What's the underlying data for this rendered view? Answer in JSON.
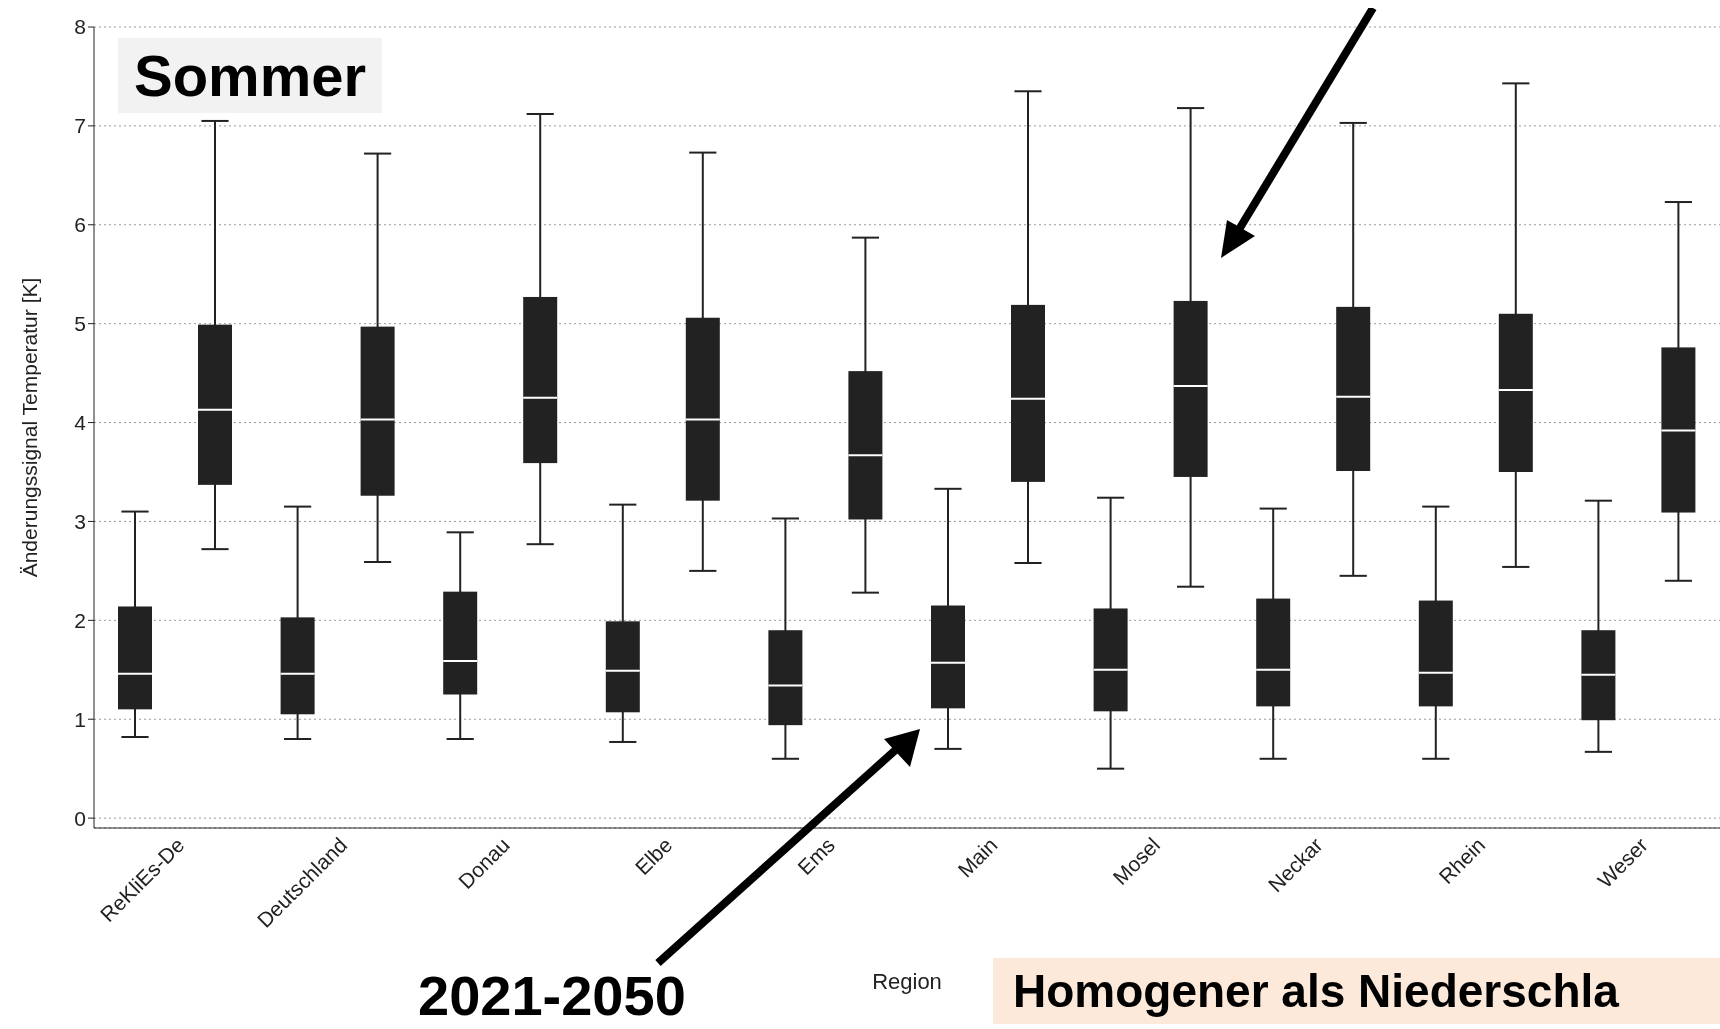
{
  "chart_data": {
    "type": "box",
    "xlabel": "Region",
    "ylabel": "Änderungssignal Temperatur [K]",
    "annotations": [
      "Sommer",
      "2021-2050",
      "Homogener als Niederschla"
    ],
    "categories": [
      "ReKliEs-De",
      "Deutschland",
      "Donau",
      "Elbe",
      "Ems",
      "Main",
      "Mosel",
      "Neckar",
      "Rhein",
      "Weser"
    ],
    "ylim": [
      -0.1,
      8
    ],
    "yticks": [
      0,
      1,
      2,
      3,
      4,
      5,
      6,
      7,
      8
    ],
    "grid": "y",
    "series": [
      {
        "color": "#222222",
        "boxes": [
          {
            "low": 0.82,
            "q1": 1.1,
            "median": 1.46,
            "q3": 2.14,
            "high": 3.1
          },
          {
            "low": 0.8,
            "q1": 1.05,
            "median": 1.46,
            "q3": 2.03,
            "high": 3.15
          },
          {
            "low": 0.8,
            "q1": 1.25,
            "median": 1.59,
            "q3": 2.29,
            "high": 2.89
          },
          {
            "low": 0.77,
            "q1": 1.07,
            "median": 1.49,
            "q3": 1.99,
            "high": 3.17
          },
          {
            "low": 0.6,
            "q1": 0.94,
            "median": 1.34,
            "q3": 1.9,
            "high": 3.03
          },
          {
            "low": 0.7,
            "q1": 1.11,
            "median": 1.57,
            "q3": 2.15,
            "high": 3.33
          },
          {
            "low": 0.5,
            "q1": 1.08,
            "median": 1.5,
            "q3": 2.12,
            "high": 3.24
          },
          {
            "low": 0.6,
            "q1": 1.13,
            "median": 1.5,
            "q3": 2.22,
            "high": 3.13
          },
          {
            "low": 0.6,
            "q1": 1.13,
            "median": 1.47,
            "q3": 2.2,
            "high": 3.15
          },
          {
            "low": 0.67,
            "q1": 0.99,
            "median": 1.45,
            "q3": 1.9,
            "high": 3.21
          }
        ]
      },
      {
        "color": "#222222",
        "boxes": [
          {
            "low": 2.72,
            "q1": 3.37,
            "median": 4.13,
            "q3": 4.99,
            "high": 7.05
          },
          {
            "low": 2.59,
            "q1": 3.26,
            "median": 4.03,
            "q3": 4.97,
            "high": 6.72
          },
          {
            "low": 2.77,
            "q1": 3.59,
            "median": 4.25,
            "q3": 5.27,
            "high": 7.12
          },
          {
            "low": 2.5,
            "q1": 3.21,
            "median": 4.03,
            "q3": 5.06,
            "high": 6.73
          },
          {
            "low": 2.28,
            "q1": 3.02,
            "median": 3.67,
            "q3": 4.52,
            "high": 5.87
          },
          {
            "low": 2.58,
            "q1": 3.4,
            "median": 4.24,
            "q3": 5.19,
            "high": 7.35
          },
          {
            "low": 2.34,
            "q1": 3.45,
            "median": 4.37,
            "q3": 5.23,
            "high": 7.18
          },
          {
            "low": 2.45,
            "q1": 3.51,
            "median": 4.26,
            "q3": 5.17,
            "high": 7.03
          },
          {
            "low": 2.54,
            "q1": 3.5,
            "median": 4.33,
            "q3": 5.1,
            "high": 7.43
          },
          {
            "low": 2.4,
            "q1": 3.09,
            "median": 3.92,
            "q3": 4.76,
            "high": 6.23
          }
        ]
      }
    ]
  }
}
